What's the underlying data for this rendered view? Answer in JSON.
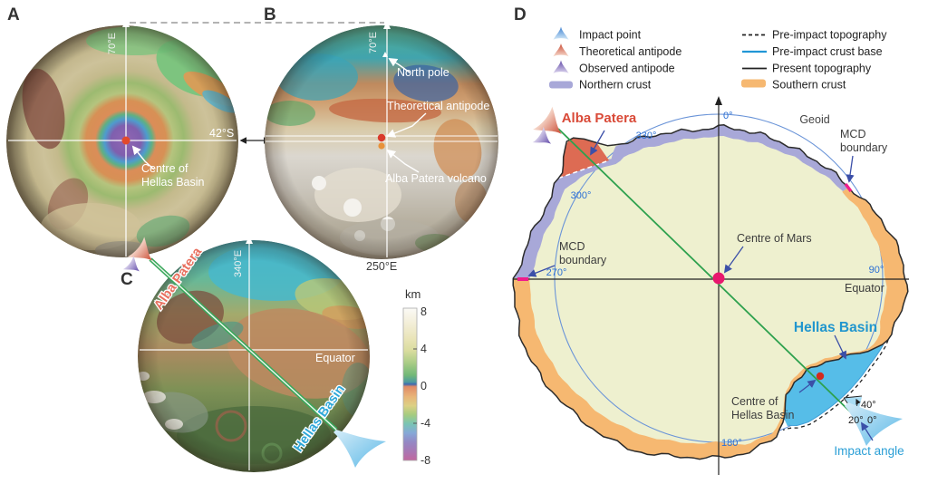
{
  "figure": {
    "panel_a": {
      "label": "A",
      "meridian_label": "70°E",
      "latitude_label": "42°S",
      "centre_caption_line1": "Centre of",
      "centre_caption_line2": "Hellas Basin"
    },
    "panel_b": {
      "label": "B",
      "meridian_label": "70°E",
      "bottom_meridian_label": "250°E",
      "north_pole_label": "North pole",
      "theoretical_antipode_label": "Theoretical antipode",
      "alba_patera_volcano_label": "Alba Patera volcano"
    },
    "panel_c": {
      "label": "C",
      "meridian_label": "340°E",
      "equator_label": "Equator",
      "alba_patera_label": "Alba Patera",
      "hellas_basin_label": "Hellas Basin"
    },
    "panel_d": {
      "label": "D",
      "legend": {
        "impact_point": "Impact point",
        "theoretical_antipode": "Theoretical antipode",
        "observed_antipode": "Observed antipode",
        "northern_crust": "Northern crust",
        "pre_impact_topography": "Pre-impact topography",
        "pre_impact_crust_base": "Pre-impact crust base",
        "present_topography": "Present topography",
        "southern_crust": "Southern crust"
      },
      "labels": {
        "alba_patera": "Alba Patera",
        "geoid": "Geoid",
        "mcd_line1": "MCD",
        "mcd_line2": "boundary",
        "centre_of_mars": "Centre of Mars",
        "hellas_basin": "Hellas Basin",
        "centre_of_hellas_line1": "Centre of",
        "centre_of_hellas_line2": "Hellas Basin",
        "equator": "Equator",
        "impact_angle": "Impact angle"
      },
      "angle_labels": {
        "deg0": "0°",
        "deg330": "330°",
        "deg300": "300°",
        "deg270": "270°",
        "deg90": "90°",
        "deg180": "180°",
        "fan_40": "40°",
        "fan_20": "20°",
        "fan_0": "0°"
      }
    },
    "colorbar": {
      "title": "km",
      "ticks": [
        "8",
        "4",
        "0",
        "-4",
        "-8"
      ]
    },
    "colors": {
      "northern_crust": "#a8a8d8",
      "southern_crust": "#f6b871",
      "hellas_fill": "#56bde8",
      "alba_wedge": "#dd6b53",
      "interior": "#eef0cf",
      "trajectory_green": "#2ea14e",
      "geoid_blue": "#6a94d8",
      "angle_text_blue": "#2b6fd4",
      "accent_magenta": "#e8186e",
      "label_red": "#d94a38",
      "label_blue": "#2196ce"
    }
  }
}
